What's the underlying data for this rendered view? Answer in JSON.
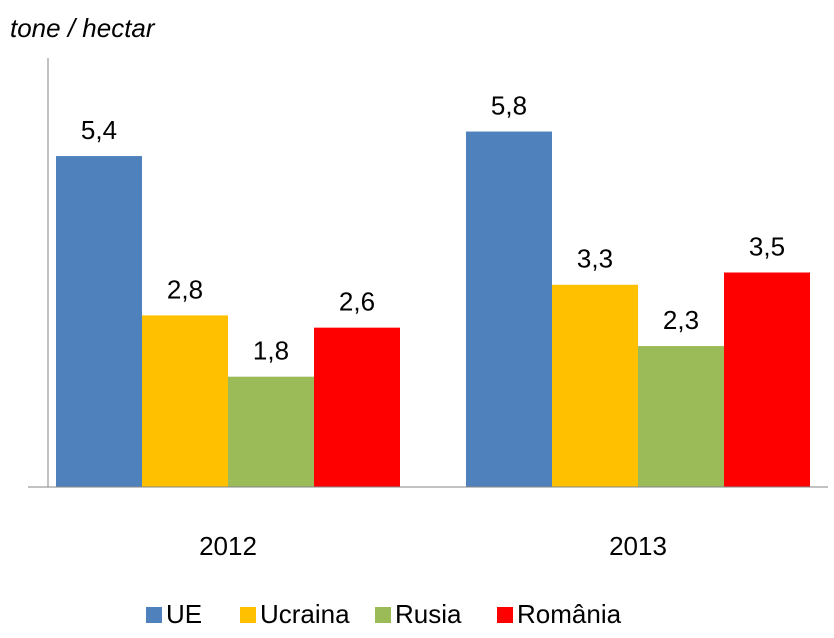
{
  "chart_data": {
    "type": "bar",
    "y_label": "tone / hectar",
    "categories": [
      "2012",
      "2013"
    ],
    "series": [
      {
        "name": "UE",
        "color": "#4f81bd",
        "values": [
          5.4,
          5.8
        ],
        "value_labels": [
          "5,4",
          "5,8"
        ]
      },
      {
        "name": "Ucraina",
        "color": "#ffc000",
        "values": [
          2.8,
          3.3
        ],
        "value_labels": [
          "2,8",
          "3,3"
        ]
      },
      {
        "name": "Rusia",
        "color": "#9bbb59",
        "values": [
          1.8,
          2.3
        ],
        "value_labels": [
          "1,8",
          "2,3"
        ]
      },
      {
        "name": "România",
        "color": "#ff0000",
        "values": [
          2.6,
          3.5
        ],
        "value_labels": [
          "2,6",
          "3,5"
        ]
      }
    ],
    "ylim": [
      0,
      7
    ],
    "legend": "bottom"
  }
}
